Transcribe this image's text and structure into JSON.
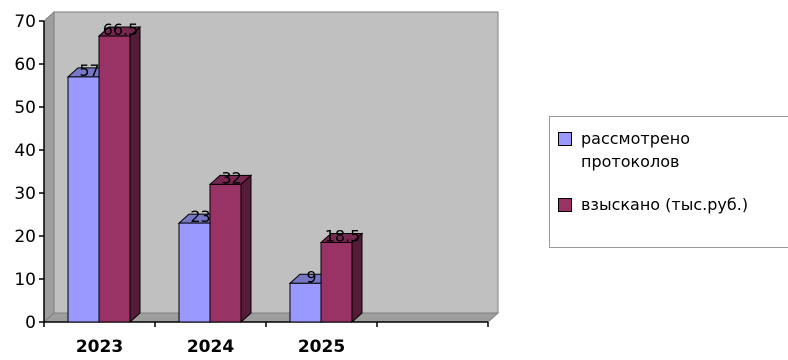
{
  "chart_data": {
    "type": "bar",
    "categories": [
      "2023",
      "2024",
      "2025"
    ],
    "series": [
      {
        "name": "рассмотрено протоколов",
        "values": [
          57,
          23,
          9
        ],
        "labels": [
          "57",
          "23",
          "9"
        ],
        "color": "#9999ff"
      },
      {
        "name": "взыскано (тыс.руб.)",
        "values": [
          66.5,
          32,
          18.5
        ],
        "labels": [
          "66.5",
          "32",
          "18.5"
        ],
        "color": "#993366"
      }
    ],
    "title": "",
    "xlabel": "",
    "ylabel": "",
    "ylim": [
      0,
      70
    ],
    "yticks": [
      "0",
      "10",
      "20",
      "30",
      "40",
      "50",
      "60",
      "70"
    ],
    "grid": false,
    "legend": "right",
    "wall_color": "#c0c0c0",
    "style": "3d-clustered-column"
  }
}
